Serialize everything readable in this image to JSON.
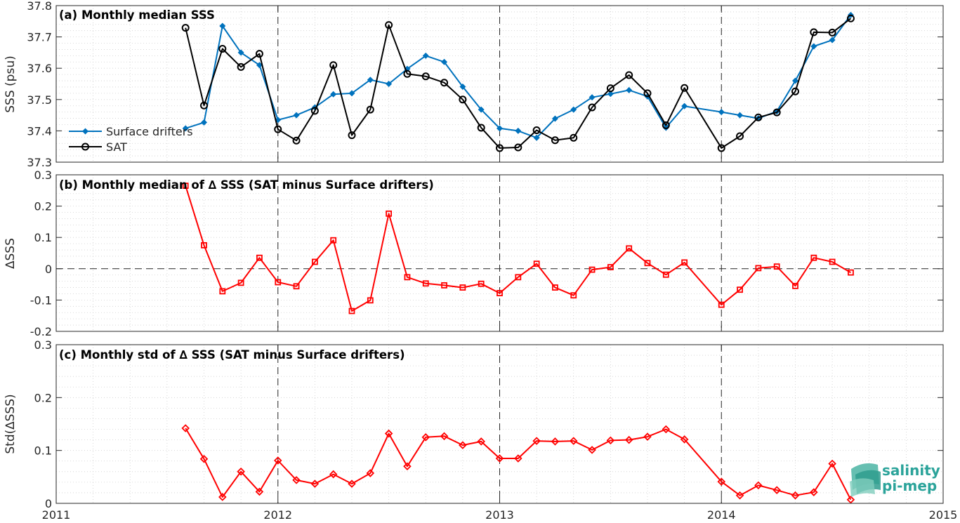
{
  "chart_data": [
    {
      "type": "line",
      "panel": "a",
      "title": "(a) Monthly median SSS",
      "ylabel": "SSS (psu)",
      "ylim": [
        37.3,
        37.8
      ],
      "yticks": [
        37.3,
        37.4,
        37.5,
        37.6,
        37.7,
        37.8
      ],
      "ytick_labels": [
        "37.3",
        "37.4",
        "37.5",
        "37.6",
        "37.7",
        "37.8"
      ],
      "legend_position": "left",
      "series": [
        {
          "name": "Surface drifters",
          "color": "#0072bd",
          "marker": "filled-diamond",
          "x": [
            "2011-08",
            "2011-09",
            "2011-10",
            "2011-11",
            "2011-12",
            "2012-01",
            "2012-02",
            "2012-03",
            "2012-04",
            "2012-05",
            "2012-06",
            "2012-07",
            "2012-08",
            "2012-09",
            "2012-10",
            "2012-11",
            "2012-12",
            "2013-01",
            "2013-02",
            "2013-03",
            "2013-04",
            "2013-05",
            "2013-06",
            "2013-07",
            "2013-08",
            "2013-09",
            "2013-10",
            "2013-11",
            "2014-01",
            "2014-02",
            "2014-03",
            "2014-04",
            "2014-05",
            "2014-06",
            "2014-07",
            "2014-08"
          ],
          "values": [
            37.408,
            37.427,
            37.735,
            37.65,
            37.61,
            37.435,
            37.45,
            37.475,
            37.517,
            37.52,
            37.563,
            37.55,
            37.598,
            37.64,
            37.62,
            37.541,
            37.468,
            37.408,
            37.4,
            37.378,
            37.439,
            37.468,
            37.507,
            37.518,
            37.53,
            37.51,
            37.41,
            37.479,
            37.46,
            37.45,
            37.44,
            37.462,
            37.56,
            37.67,
            37.69,
            37.77
          ]
        },
        {
          "name": "SAT",
          "color": "#000000",
          "marker": "open-circle",
          "x": [
            "2011-08",
            "2011-09",
            "2011-10",
            "2011-11",
            "2011-12",
            "2012-01",
            "2012-02",
            "2012-03",
            "2012-04",
            "2012-05",
            "2012-06",
            "2012-07",
            "2012-08",
            "2012-09",
            "2012-10",
            "2012-11",
            "2012-12",
            "2013-01",
            "2013-02",
            "2013-03",
            "2013-04",
            "2013-05",
            "2013-06",
            "2013-07",
            "2013-08",
            "2013-09",
            "2013-10",
            "2013-11",
            "2014-01",
            "2014-02",
            "2014-03",
            "2014-04",
            "2014-05",
            "2014-06",
            "2014-07",
            "2014-08"
          ],
          "values": [
            37.729,
            37.481,
            37.662,
            37.604,
            37.646,
            37.405,
            37.369,
            37.464,
            37.61,
            37.386,
            37.468,
            37.738,
            37.582,
            37.574,
            37.554,
            37.5,
            37.41,
            37.345,
            37.347,
            37.402,
            37.37,
            37.378,
            37.475,
            37.536,
            37.578,
            37.52,
            37.418,
            37.537,
            37.345,
            37.383,
            37.443,
            37.459,
            37.526,
            37.715,
            37.714,
            37.759
          ]
        }
      ]
    },
    {
      "type": "line",
      "panel": "b",
      "title": "(b) Monthly median of ∆ SSS (SAT minus Surface drifters)",
      "ylabel": "∆SSS",
      "ylim": [
        -0.2,
        0.3
      ],
      "yticks": [
        -0.2,
        -0.1,
        0,
        0.1,
        0.2,
        0.3
      ],
      "ytick_labels": [
        "-0.2",
        "-0.1",
        "0",
        "0.1",
        "0.2",
        "0.3"
      ],
      "reference_line": 0,
      "series": [
        {
          "color": "#ff0000",
          "marker": "open-square",
          "x": [
            "2011-08",
            "2011-09",
            "2011-10",
            "2011-11",
            "2011-12",
            "2012-01",
            "2012-02",
            "2012-03",
            "2012-04",
            "2012-05",
            "2012-06",
            "2012-07",
            "2012-08",
            "2012-09",
            "2012-10",
            "2012-11",
            "2012-12",
            "2013-01",
            "2013-02",
            "2013-03",
            "2013-04",
            "2013-05",
            "2013-06",
            "2013-07",
            "2013-08",
            "2013-09",
            "2013-10",
            "2013-11",
            "2014-01",
            "2014-02",
            "2014-03",
            "2014-04",
            "2014-05",
            "2014-06",
            "2014-07",
            "2014-08"
          ],
          "values": [
            0.265,
            0.075,
            -0.072,
            -0.045,
            0.035,
            -0.043,
            -0.056,
            0.022,
            0.091,
            -0.135,
            -0.101,
            0.176,
            -0.027,
            -0.047,
            -0.053,
            -0.06,
            -0.048,
            -0.078,
            -0.027,
            0.016,
            -0.06,
            -0.085,
            -0.003,
            0.005,
            0.065,
            0.018,
            -0.019,
            0.02,
            -0.115,
            -0.067,
            0.002,
            0.007,
            -0.055,
            0.035,
            0.022,
            -0.012
          ]
        }
      ]
    },
    {
      "type": "line",
      "panel": "c",
      "title": "(c) Monthly std of ∆ SSS (SAT minus Surface drifters)",
      "ylabel": "Std(∆SSS)",
      "ylim": [
        0,
        0.3
      ],
      "yticks": [
        0,
        0.1,
        0.2,
        0.3
      ],
      "ytick_labels": [
        "0",
        "0.1",
        "0.2",
        "0.3"
      ],
      "xlim": [
        "2011-01",
        "2015-01"
      ],
      "xticks": [
        "2011",
        "2012",
        "2013",
        "2014",
        "2015"
      ],
      "series": [
        {
          "color": "#ff0000",
          "marker": "open-diamond",
          "x": [
            "2011-08",
            "2011-09",
            "2011-10",
            "2011-11",
            "2011-12",
            "2012-01",
            "2012-02",
            "2012-03",
            "2012-04",
            "2012-05",
            "2012-06",
            "2012-07",
            "2012-08",
            "2012-09",
            "2012-10",
            "2012-11",
            "2012-12",
            "2013-01",
            "2013-02",
            "2013-03",
            "2013-04",
            "2013-05",
            "2013-06",
            "2013-07",
            "2013-08",
            "2013-09",
            "2013-10",
            "2013-11",
            "2014-01",
            "2014-02",
            "2014-03",
            "2014-04",
            "2014-05",
            "2014-06",
            "2014-07",
            "2014-08"
          ],
          "values": [
            0.142,
            0.084,
            0.012,
            0.06,
            0.022,
            0.081,
            0.044,
            0.037,
            0.055,
            0.037,
            0.057,
            0.132,
            0.07,
            0.125,
            0.127,
            0.11,
            0.117,
            0.085,
            0.085,
            0.118,
            0.117,
            0.118,
            0.101,
            0.119,
            0.12,
            0.126,
            0.14,
            0.121,
            0.041,
            0.015,
            0.034,
            0.025,
            0.015,
            0.021,
            0.075,
            0.007
          ]
        }
      ]
    }
  ],
  "logo": {
    "line1": "salinity",
    "line2": "pi-mep",
    "color": "#2ba39a"
  }
}
